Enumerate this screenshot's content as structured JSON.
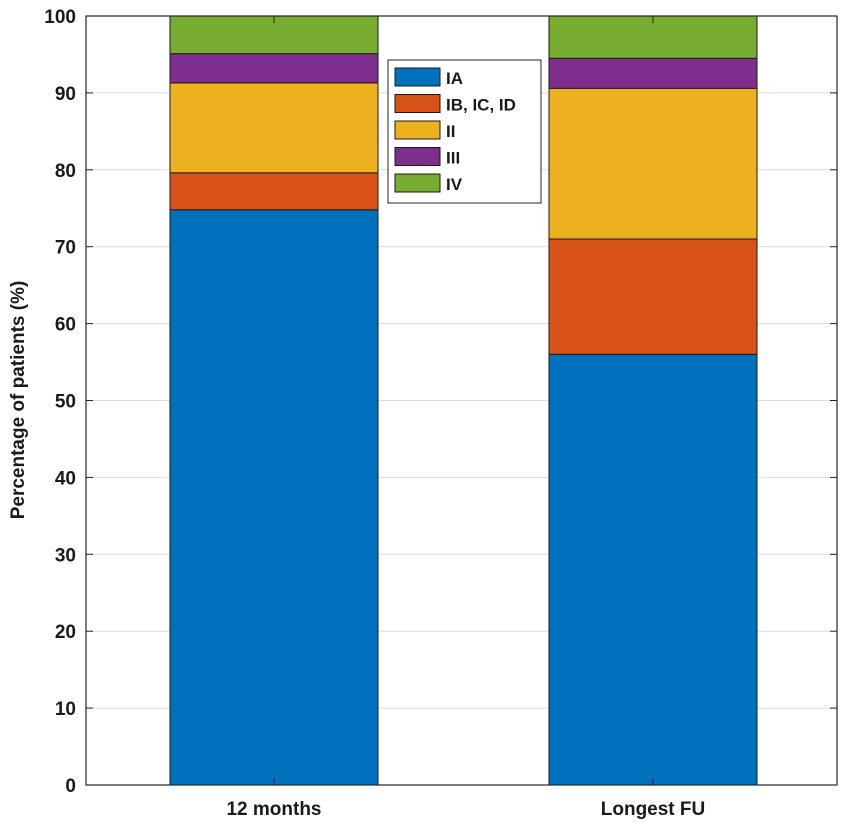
{
  "chart_data": {
    "type": "bar",
    "stacked": true,
    "title": "",
    "xlabel": "",
    "ylabel": "Percentage of patients (%)",
    "ylim": [
      0,
      100
    ],
    "yticks": [
      0,
      10,
      20,
      30,
      40,
      50,
      60,
      70,
      80,
      90,
      100
    ],
    "grid": true,
    "legend_position": "top-center",
    "categories": [
      "12 months",
      "Longest FU"
    ],
    "series": [
      {
        "name": "IA",
        "color": "#0072BD",
        "values": [
          74.8,
          56.0
        ]
      },
      {
        "name": "IB, IC, ID",
        "color": "#D95319",
        "values": [
          4.8,
          15.0
        ]
      },
      {
        "name": "II",
        "color": "#EDB120",
        "values": [
          11.7,
          19.6
        ]
      },
      {
        "name": "III",
        "color": "#7E2F8E",
        "values": [
          3.8,
          3.9
        ]
      },
      {
        "name": "IV",
        "color": "#77AC30",
        "values": [
          4.9,
          5.5
        ]
      }
    ]
  }
}
